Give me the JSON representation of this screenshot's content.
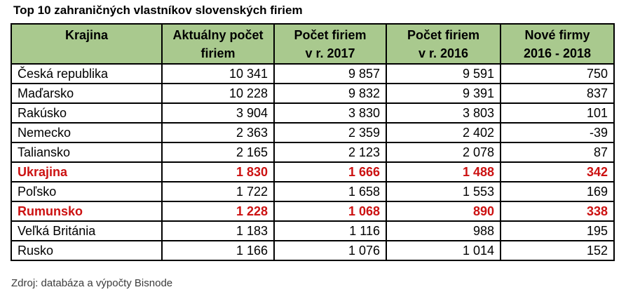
{
  "title": "Top 10 zahraničných vlastníkov slovenských firiem",
  "source": "Zdroj: databáza a výpočty Bisnode",
  "colors": {
    "header_bg": "#A9C98E",
    "highlight_text": "#CC1111",
    "border": "#000000"
  },
  "table": {
    "headers": [
      {
        "line1": "Krajina",
        "line2": ""
      },
      {
        "line1": "Aktuálny počet",
        "line2": "firiem"
      },
      {
        "line1": "Počet firiem",
        "line2": "v r. 2017"
      },
      {
        "line1": "Počet firiem",
        "line2": "v r. 2016"
      },
      {
        "line1": "Nové firmy",
        "line2": "2016 - 2018"
      }
    ],
    "rows": [
      {
        "cells": [
          "Česká republika",
          "10 341",
          "9 857",
          "9 591",
          "750"
        ],
        "highlight": false
      },
      {
        "cells": [
          "Maďarsko",
          "10 228",
          "9 832",
          "9 391",
          "837"
        ],
        "highlight": false
      },
      {
        "cells": [
          "Rakúsko",
          "3 904",
          "3 830",
          "3 803",
          "101"
        ],
        "highlight": false
      },
      {
        "cells": [
          "Nemecko",
          "2 363",
          "2 359",
          "2 402",
          "-39"
        ],
        "highlight": false
      },
      {
        "cells": [
          "Taliansko",
          "2 165",
          "2 123",
          "2 078",
          "87"
        ],
        "highlight": false
      },
      {
        "cells": [
          "Ukrajina",
          "1 830",
          "1 666",
          "1 488",
          "342"
        ],
        "highlight": true
      },
      {
        "cells": [
          "Poľsko",
          "1 722",
          "1 658",
          "1 553",
          "169"
        ],
        "highlight": false
      },
      {
        "cells": [
          "Rumunsko",
          "1 228",
          "1 068",
          "890",
          "338"
        ],
        "highlight": true
      },
      {
        "cells": [
          "Veľká Británia",
          "1 183",
          "1 116",
          "988",
          "195"
        ],
        "highlight": false
      },
      {
        "cells": [
          "Rusko",
          "1 166",
          "1 076",
          "1 014",
          "152"
        ],
        "highlight": false
      }
    ]
  },
  "chart_data": {
    "type": "table",
    "title": "Top 10 zahraničných vlastníkov slovenských firiem",
    "columns": [
      "Krajina",
      "Aktuálny počet firiem",
      "Počet firiem v r. 2017",
      "Počet firiem v r. 2016",
      "Nové firmy 2016 - 2018"
    ],
    "rows": [
      [
        "Česká republika",
        10341,
        9857,
        9591,
        750
      ],
      [
        "Maďarsko",
        10228,
        9832,
        9391,
        837
      ],
      [
        "Rakúsko",
        3904,
        3830,
        3803,
        101
      ],
      [
        "Nemecko",
        2363,
        2359,
        2402,
        -39
      ],
      [
        "Taliansko",
        2165,
        2123,
        2078,
        87
      ],
      [
        "Ukrajina",
        1830,
        1666,
        1488,
        342
      ],
      [
        "Poľsko",
        1722,
        1658,
        1553,
        169
      ],
      [
        "Rumunsko",
        1228,
        1068,
        890,
        338
      ],
      [
        "Veľká Británia",
        1183,
        1116,
        988,
        195
      ],
      [
        "Rusko",
        1166,
        1076,
        1014,
        152
      ]
    ],
    "highlighted_rows": [
      "Ukrajina",
      "Rumunsko"
    ],
    "source": "Zdroj: databáza a výpočty Bisnode"
  }
}
